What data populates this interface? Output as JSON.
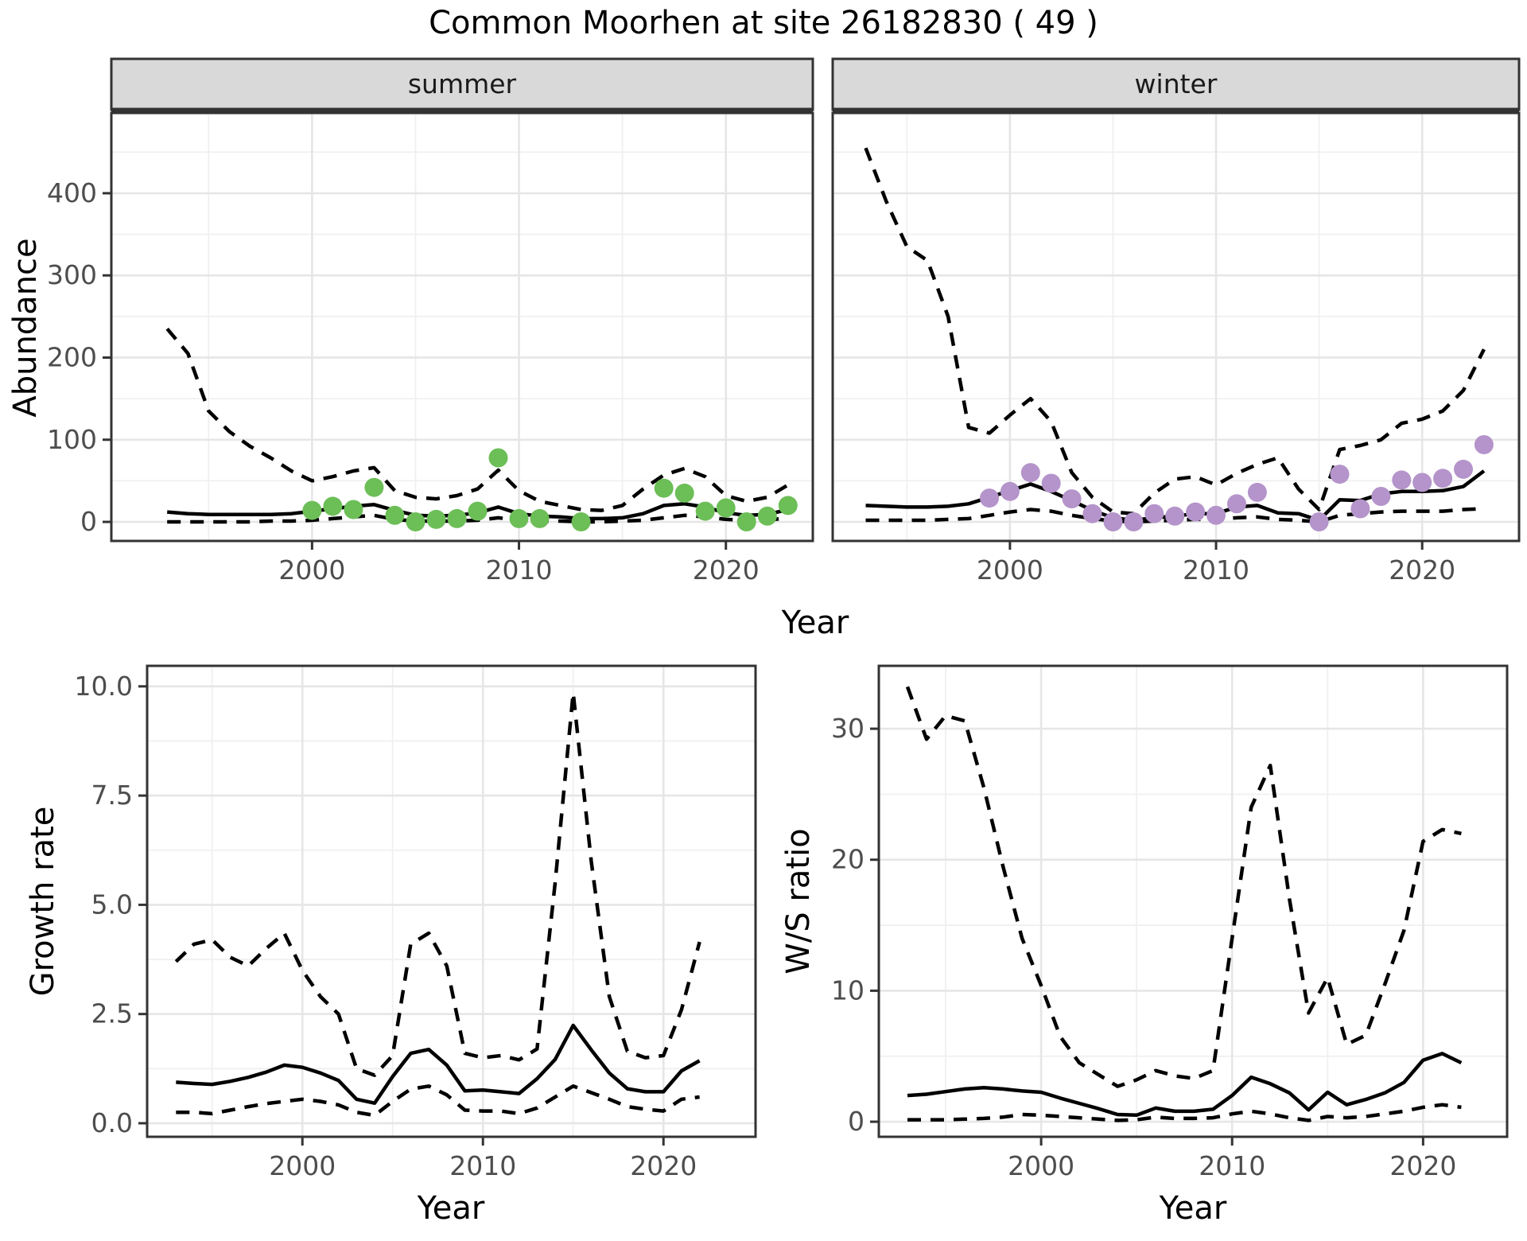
{
  "title": "Common Moorhen at site 26182830 ( 49 )",
  "top_xlabel": "Year",
  "colors": {
    "summer_points": "#6CBE57",
    "winter_points": "#B494CA",
    "line": "#000000",
    "strip_fill": "#D9D9D9",
    "panel_border": "#333333",
    "grid_major": "#E6E6E6",
    "grid_minor": "#F0F0F0",
    "tick_text": "#4D4D4D"
  },
  "chart_data": [
    {
      "id": "abundance_summer",
      "type": "line",
      "facet_label": "summer",
      "ylabel": "Abundance",
      "xlabel": "Year",
      "show_y_axis": true,
      "grid": true,
      "legend_position": "none",
      "xlim": [
        1990.3,
        2024.2
      ],
      "ylim": [
        -23.2,
        497.7
      ],
      "x_ticks": {
        "values": [
          2000,
          2010,
          2020
        ],
        "labels": [
          "2000",
          "2010",
          "2020"
        ]
      },
      "y_ticks": {
        "values": [
          0,
          100,
          200,
          300,
          400
        ],
        "labels": [
          "0",
          "100",
          "200",
          "300",
          "400"
        ]
      },
      "x_minor": [
        1995,
        2005,
        2015
      ],
      "y_minor": [
        50,
        150,
        250,
        350,
        450
      ],
      "years": [
        1993,
        1994,
        1995,
        1996,
        1997,
        1998,
        1999,
        2000,
        2001,
        2002,
        2003,
        2004,
        2005,
        2006,
        2007,
        2008,
        2009,
        2010,
        2011,
        2012,
        2013,
        2014,
        2015,
        2016,
        2017,
        2018,
        2019,
        2020,
        2021,
        2022,
        2023
      ],
      "series": [
        {
          "name": "upper_ci",
          "style": "dashed",
          "values": [
            235,
            205,
            135,
            110,
            92,
            78,
            62,
            50,
            55,
            62,
            66,
            38,
            30,
            28,
            32,
            40,
            63,
            38,
            25,
            20,
            15,
            14,
            20,
            40,
            57,
            65,
            55,
            32,
            25,
            30,
            45
          ]
        },
        {
          "name": "median",
          "style": "solid",
          "values": [
            12,
            10,
            9,
            9,
            9,
            9,
            10,
            13,
            16,
            19,
            21,
            14,
            8,
            7,
            8,
            11,
            18,
            10,
            7,
            6,
            4,
            4,
            5,
            10,
            20,
            22,
            18,
            11,
            8,
            9,
            15
          ]
        },
        {
          "name": "lower_ci",
          "style": "dashed",
          "values": [
            0,
            0,
            0,
            0,
            0,
            1,
            1,
            2,
            4,
            6,
            8,
            3,
            1,
            1,
            1,
            2,
            5,
            2,
            1,
            1,
            0,
            0,
            1,
            2,
            5,
            8,
            6,
            3,
            2,
            2,
            5
          ]
        }
      ],
      "points": {
        "color": "#6CBE57",
        "years": [
          2000,
          2001,
          2002,
          2003,
          2004,
          2005,
          2006,
          2007,
          2008,
          2009,
          2010,
          2011,
          2013,
          2017,
          2018,
          2019,
          2020,
          2021,
          2022,
          2023
        ],
        "values": [
          14,
          19,
          15,
          42,
          8,
          0,
          3,
          4,
          13,
          78,
          4,
          4,
          0,
          41,
          35,
          13,
          17,
          0,
          7,
          20
        ]
      }
    },
    {
      "id": "abundance_winter",
      "type": "line",
      "facet_label": "winter",
      "ylabel": "Abundance",
      "xlabel": "Year",
      "show_y_axis": false,
      "grid": true,
      "legend_position": "none",
      "xlim": [
        1991.4,
        2024.7
      ],
      "ylim": [
        -23.2,
        497.7
      ],
      "x_ticks": {
        "values": [
          2000,
          2010,
          2020
        ],
        "labels": [
          "2000",
          "2010",
          "2020"
        ]
      },
      "y_ticks": {
        "values": [
          0,
          100,
          200,
          300,
          400
        ],
        "labels": [
          "0",
          "100",
          "200",
          "300",
          "400"
        ]
      },
      "x_minor": [
        1995,
        2005,
        2015
      ],
      "y_minor": [
        50,
        150,
        250,
        350,
        450
      ],
      "years": [
        1993,
        1994,
        1995,
        1996,
        1997,
        1998,
        1999,
        2000,
        2001,
        2002,
        2003,
        2004,
        2005,
        2006,
        2007,
        2008,
        2009,
        2010,
        2011,
        2012,
        2013,
        2014,
        2015,
        2016,
        2017,
        2018,
        2019,
        2020,
        2021,
        2022,
        2023
      ],
      "series": [
        {
          "name": "upper_ci",
          "style": "dashed",
          "values": [
            455,
            390,
            335,
            318,
            250,
            115,
            108,
            130,
            150,
            122,
            60,
            30,
            12,
            10,
            35,
            52,
            55,
            45,
            59,
            70,
            78,
            40,
            15,
            88,
            93,
            100,
            120,
            125,
            135,
            160,
            210
          ]
        },
        {
          "name": "median",
          "style": "solid",
          "values": [
            20,
            19,
            18,
            18,
            19,
            22,
            30,
            38,
            46,
            37,
            26,
            14,
            5,
            2,
            5,
            7,
            10,
            10,
            18,
            20,
            11,
            10,
            2,
            27,
            26,
            34,
            37,
            37,
            38,
            43,
            62
          ]
        },
        {
          "name": "lower_ci",
          "style": "dashed",
          "values": [
            2,
            2,
            2,
            2,
            3,
            4,
            8,
            12,
            15,
            13,
            8,
            4,
            1,
            0,
            1,
            2,
            3,
            3,
            5,
            6,
            3,
            2,
            0,
            8,
            10,
            12,
            13,
            13,
            13,
            15,
            16
          ]
        }
      ],
      "points": {
        "color": "#B494CA",
        "years": [
          1999,
          2000,
          2001,
          2002,
          2003,
          2004,
          2005,
          2006,
          2007,
          2008,
          2009,
          2010,
          2011,
          2012,
          2015,
          2016,
          2017,
          2018,
          2019,
          2020,
          2021,
          2022,
          2023
        ],
        "values": [
          29,
          37,
          60,
          47,
          28,
          10,
          0,
          0,
          10,
          7,
          12,
          8,
          22,
          36,
          0,
          58,
          16,
          31,
          51,
          48,
          53,
          64,
          94
        ]
      }
    },
    {
      "id": "growth_rate",
      "type": "line",
      "facet_label": "",
      "ylabel": "Growth rate",
      "xlabel": "Year",
      "show_y_axis": true,
      "grid": true,
      "legend_position": "none",
      "xlim": [
        1991.4,
        2025.1
      ],
      "ylim": [
        -0.31,
        10.47
      ],
      "x_ticks": {
        "values": [
          2000,
          2010,
          2020
        ],
        "labels": [
          "2000",
          "2010",
          "2020"
        ]
      },
      "y_ticks": {
        "values": [
          0,
          2.5,
          5,
          7.5,
          10
        ],
        "labels": [
          "0.0",
          "2.5",
          "5.0",
          "7.5",
          "10.0"
        ]
      },
      "x_minor": [
        1995,
        2005,
        2015
      ],
      "y_minor": [
        1.25,
        3.75,
        6.25,
        8.75
      ],
      "years": [
        1993,
        1994,
        1995,
        1996,
        1997,
        1998,
        1999,
        2000,
        2001,
        2002,
        2003,
        2004,
        2005,
        2006,
        2007,
        2008,
        2009,
        2010,
        2011,
        2012,
        2013,
        2014,
        2015,
        2016,
        2017,
        2018,
        2019,
        2020,
        2021,
        2022
      ],
      "series": [
        {
          "name": "upper_ci",
          "style": "dashed",
          "values": [
            3.7,
            4.1,
            4.2,
            3.8,
            3.6,
            4.0,
            4.35,
            3.5,
            2.9,
            2.5,
            1.25,
            1.1,
            1.55,
            4.1,
            4.35,
            3.6,
            1.6,
            1.5,
            1.55,
            1.45,
            1.7,
            5.5,
            9.85,
            6.0,
            2.9,
            1.65,
            1.5,
            1.55,
            2.6,
            4.15
          ]
        },
        {
          "name": "median",
          "style": "solid",
          "values": [
            0.94,
            0.91,
            0.89,
            0.96,
            1.05,
            1.17,
            1.33,
            1.28,
            1.15,
            0.98,
            0.55,
            0.46,
            1.07,
            1.6,
            1.69,
            1.33,
            0.74,
            0.76,
            0.72,
            0.68,
            1.02,
            1.46,
            2.24,
            1.68,
            1.15,
            0.79,
            0.72,
            0.72,
            1.2,
            1.43
          ]
        },
        {
          "name": "lower_ci",
          "style": "dashed",
          "values": [
            0.25,
            0.25,
            0.22,
            0.3,
            0.38,
            0.45,
            0.5,
            0.55,
            0.5,
            0.42,
            0.25,
            0.18,
            0.5,
            0.78,
            0.85,
            0.65,
            0.3,
            0.28,
            0.28,
            0.22,
            0.35,
            0.6,
            0.85,
            0.7,
            0.55,
            0.38,
            0.32,
            0.28,
            0.55,
            0.6
          ]
        }
      ],
      "points": null
    },
    {
      "id": "ws_ratio",
      "type": "line",
      "facet_label": "",
      "ylabel": "W/S ratio",
      "xlabel": "Year",
      "show_y_axis": true,
      "grid": true,
      "legend_position": "none",
      "xlim": [
        1991.5,
        2024.4
      ],
      "ylim": [
        -1.15,
        34.8
      ],
      "x_ticks": {
        "values": [
          2000,
          2010,
          2020
        ],
        "labels": [
          "2000",
          "2010",
          "2020"
        ]
      },
      "y_ticks": {
        "values": [
          0,
          10,
          20,
          30
        ],
        "labels": [
          "0",
          "10",
          "20",
          "30"
        ]
      },
      "x_minor": [
        1995,
        2005,
        2015
      ],
      "y_minor": [
        5,
        15,
        25,
        35
      ],
      "years": [
        1993,
        1994,
        1995,
        1996,
        1997,
        1998,
        1999,
        2000,
        2001,
        2002,
        2003,
        2004,
        2005,
        2006,
        2007,
        2008,
        2009,
        2010,
        2011,
        2012,
        2013,
        2014,
        2015,
        2016,
        2017,
        2018,
        2019,
        2020,
        2021,
        2022
      ],
      "series": [
        {
          "name": "upper_ci",
          "style": "dashed",
          "values": [
            33.2,
            29.2,
            31.0,
            30.6,
            25.5,
            19.5,
            14.0,
            10.4,
            6.5,
            4.5,
            3.6,
            2.7,
            3.2,
            3.9,
            3.5,
            3.3,
            3.9,
            14.0,
            24.0,
            27.2,
            17.0,
            8.3,
            11.0,
            5.9,
            6.6,
            10.5,
            14.6,
            21.4,
            22.3,
            22.0
          ]
        },
        {
          "name": "median",
          "style": "solid",
          "values": [
            2.0,
            2.1,
            2.3,
            2.5,
            2.6,
            2.5,
            2.35,
            2.25,
            1.8,
            1.4,
            1.0,
            0.55,
            0.5,
            1.05,
            0.8,
            0.8,
            0.95,
            2.0,
            3.4,
            2.9,
            2.2,
            0.9,
            2.25,
            1.3,
            1.7,
            2.2,
            3.0,
            4.7,
            5.2,
            4.5
          ]
        },
        {
          "name": "lower_ci",
          "style": "dashed",
          "values": [
            0.15,
            0.15,
            0.15,
            0.2,
            0.25,
            0.35,
            0.55,
            0.5,
            0.4,
            0.3,
            0.2,
            0.1,
            0.15,
            0.35,
            0.25,
            0.25,
            0.3,
            0.6,
            0.8,
            0.6,
            0.3,
            0.1,
            0.4,
            0.3,
            0.4,
            0.6,
            0.8,
            1.1,
            1.3,
            1.1
          ]
        }
      ],
      "points": null
    }
  ]
}
